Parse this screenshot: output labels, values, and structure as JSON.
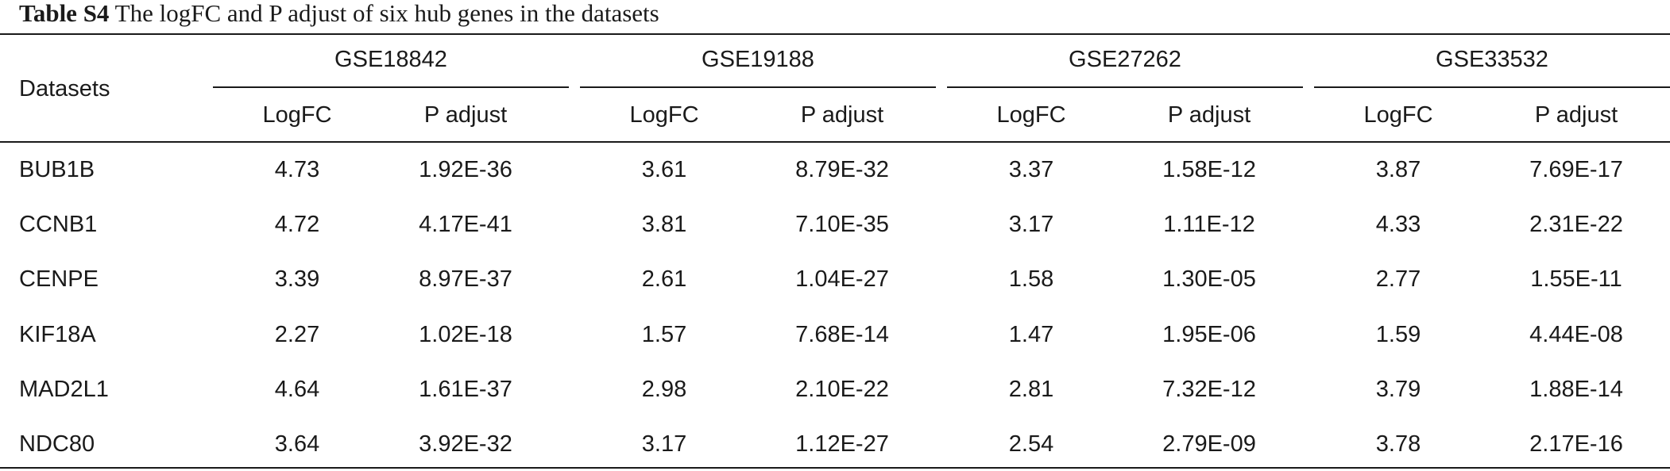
{
  "caption": {
    "label": "Table S4",
    "text": "The logFC and P adjust of six hub genes in the datasets"
  },
  "table": {
    "row_header_label": "Datasets",
    "groups": [
      "GSE18842",
      "GSE19188",
      "GSE27262",
      "GSE33532"
    ],
    "subheaders": [
      "LogFC",
      "P adjust"
    ],
    "rows": [
      {
        "gene": "BUB1B",
        "values": [
          "4.73",
          "1.92E-36",
          "3.61",
          "8.79E-32",
          "3.37",
          "1.58E-12",
          "3.87",
          "7.69E-17"
        ]
      },
      {
        "gene": "CCNB1",
        "values": [
          "4.72",
          "4.17E-41",
          "3.81",
          "7.10E-35",
          "3.17",
          "1.11E-12",
          "4.33",
          "2.31E-22"
        ]
      },
      {
        "gene": "CENPE",
        "values": [
          "3.39",
          "8.97E-37",
          "2.61",
          "1.04E-27",
          "1.58",
          "1.30E-05",
          "2.77",
          "1.55E-11"
        ]
      },
      {
        "gene": "KIF18A",
        "values": [
          "2.27",
          "1.02E-18",
          "1.57",
          "7.68E-14",
          "1.47",
          "1.95E-06",
          "1.59",
          "4.44E-08"
        ]
      },
      {
        "gene": "MAD2L1",
        "values": [
          "4.64",
          "1.61E-37",
          "2.98",
          "2.10E-22",
          "2.81",
          "7.32E-12",
          "3.79",
          "1.88E-14"
        ]
      },
      {
        "gene": "NDC80",
        "values": [
          "3.64",
          "3.92E-32",
          "3.17",
          "1.12E-27",
          "2.54",
          "2.79E-09",
          "3.78",
          "2.17E-16"
        ]
      }
    ]
  }
}
